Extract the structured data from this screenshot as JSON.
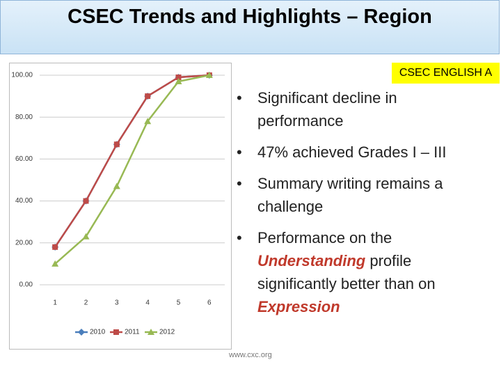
{
  "header": {
    "title": "CSEC Trends and Highlights – Region"
  },
  "badge": "CSEC ENGLISH A",
  "bullets": [
    [
      {
        "text": "Significant decline in performance",
        "emphasis": false
      }
    ],
    [
      {
        "text": "47% achieved Grades I – III",
        "emphasis": false
      }
    ],
    [
      {
        "text": "Summary writing remains a challenge",
        "emphasis": false
      }
    ],
    [
      {
        "text": "Performance on the ",
        "emphasis": false
      },
      {
        "text": "Understanding",
        "emphasis": true
      },
      {
        "text": " profile significantly better than on ",
        "emphasis": false
      },
      {
        "text": "Expression",
        "emphasis": true
      }
    ]
  ],
  "footer": "www.cxc.org",
  "chart_data": {
    "type": "line",
    "categories": [
      "1",
      "2",
      "3",
      "4",
      "5",
      "6"
    ],
    "series": [
      {
        "name": "2010",
        "color": "#4a7ebb",
        "marker": "diamond",
        "values": [
          18,
          40,
          67,
          90,
          99,
          100
        ]
      },
      {
        "name": "2011",
        "color": "#be4b48",
        "marker": "square",
        "values": [
          18,
          40,
          67,
          90,
          99,
          100
        ]
      },
      {
        "name": "2012",
        "color": "#98b954",
        "marker": "triangle",
        "values": [
          10,
          23,
          47,
          78,
          97,
          100
        ]
      }
    ],
    "ylim": [
      0,
      100
    ],
    "yticks": [
      {
        "value": 0,
        "label": "0.00"
      },
      {
        "value": 20,
        "label": "20.00"
      },
      {
        "value": 40,
        "label": "40.00"
      },
      {
        "value": 60,
        "label": "60.00"
      },
      {
        "value": 80,
        "label": "80.00"
      },
      {
        "value": 100,
        "label": "100.00"
      }
    ],
    "grid": true,
    "legend": "bottom"
  }
}
